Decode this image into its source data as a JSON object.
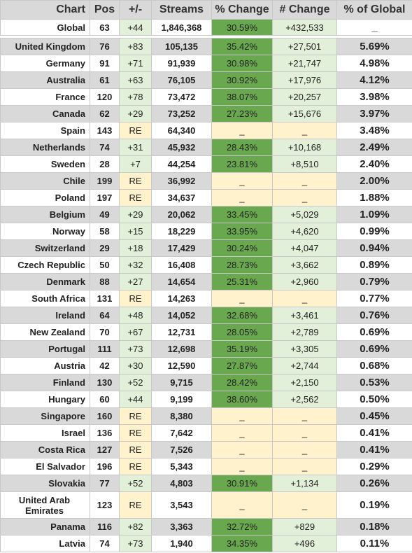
{
  "chart_data": {
    "type": "table",
    "columns": [
      "Chart",
      "Pos",
      "+/-",
      "Streams",
      "% Change",
      "# Change",
      "% of Global"
    ],
    "global": {
      "chart": "Global",
      "pos": "63",
      "delta": "+44",
      "streams": "1,846,368",
      "pct_change": "30.59%",
      "num_change": "+432,533",
      "pct_global": "_"
    },
    "rows": [
      {
        "chart": "United Kingdom",
        "pos": "76",
        "delta": "+83",
        "streams": "105,135",
        "pct_change": "35.42%",
        "num_change": "+27,501",
        "pct_global": "5.69%"
      },
      {
        "chart": "Germany",
        "pos": "91",
        "delta": "+71",
        "streams": "91,939",
        "pct_change": "30.98%",
        "num_change": "+21,747",
        "pct_global": "4.98%"
      },
      {
        "chart": "Australia",
        "pos": "61",
        "delta": "+63",
        "streams": "76,105",
        "pct_change": "30.92%",
        "num_change": "+17,976",
        "pct_global": "4.12%"
      },
      {
        "chart": "France",
        "pos": "120",
        "delta": "+78",
        "streams": "73,472",
        "pct_change": "38.07%",
        "num_change": "+20,257",
        "pct_global": "3.98%"
      },
      {
        "chart": "Canada",
        "pos": "62",
        "delta": "+29",
        "streams": "73,252",
        "pct_change": "27.23%",
        "num_change": "+15,676",
        "pct_global": "3.97%"
      },
      {
        "chart": "Spain",
        "pos": "143",
        "delta": "RE",
        "streams": "64,340",
        "pct_change": "_",
        "num_change": "_",
        "pct_global": "3.48%"
      },
      {
        "chart": "Netherlands",
        "pos": "74",
        "delta": "+31",
        "streams": "45,932",
        "pct_change": "28.43%",
        "num_change": "+10,168",
        "pct_global": "2.49%"
      },
      {
        "chart": "Sweden",
        "pos": "28",
        "delta": "+7",
        "streams": "44,254",
        "pct_change": "23.81%",
        "num_change": "+8,510",
        "pct_global": "2.40%"
      },
      {
        "chart": "Chile",
        "pos": "199",
        "delta": "RE",
        "streams": "36,992",
        "pct_change": "_",
        "num_change": "_",
        "pct_global": "2.00%"
      },
      {
        "chart": "Poland",
        "pos": "197",
        "delta": "RE",
        "streams": "34,637",
        "pct_change": "_",
        "num_change": "_",
        "pct_global": "1.88%"
      },
      {
        "chart": "Belgium",
        "pos": "49",
        "delta": "+29",
        "streams": "20,062",
        "pct_change": "33.45%",
        "num_change": "+5,029",
        "pct_global": "1.09%"
      },
      {
        "chart": "Norway",
        "pos": "58",
        "delta": "+15",
        "streams": "18,229",
        "pct_change": "33.95%",
        "num_change": "+4,620",
        "pct_global": "0.99%"
      },
      {
        "chart": "Switzerland",
        "pos": "29",
        "delta": "+18",
        "streams": "17,429",
        "pct_change": "30.24%",
        "num_change": "+4,047",
        "pct_global": "0.94%"
      },
      {
        "chart": "Czech Republic",
        "pos": "50",
        "delta": "+32",
        "streams": "16,408",
        "pct_change": "28.73%",
        "num_change": "+3,662",
        "pct_global": "0.89%"
      },
      {
        "chart": "Denmark",
        "pos": "88",
        "delta": "+27",
        "streams": "14,654",
        "pct_change": "25.31%",
        "num_change": "+2,960",
        "pct_global": "0.79%"
      },
      {
        "chart": "South Africa",
        "pos": "131",
        "delta": "RE",
        "streams": "14,263",
        "pct_change": "_",
        "num_change": "_",
        "pct_global": "0.77%"
      },
      {
        "chart": "Ireland",
        "pos": "64",
        "delta": "+48",
        "streams": "14,052",
        "pct_change": "32.68%",
        "num_change": "+3,461",
        "pct_global": "0.76%"
      },
      {
        "chart": "New Zealand",
        "pos": "70",
        "delta": "+67",
        "streams": "12,731",
        "pct_change": "28.05%",
        "num_change": "+2,789",
        "pct_global": "0.69%"
      },
      {
        "chart": "Portugal",
        "pos": "111",
        "delta": "+73",
        "streams": "12,698",
        "pct_change": "35.19%",
        "num_change": "+3,305",
        "pct_global": "0.69%"
      },
      {
        "chart": "Austria",
        "pos": "42",
        "delta": "+30",
        "streams": "12,590",
        "pct_change": "27.87%",
        "num_change": "+2,744",
        "pct_global": "0.68%"
      },
      {
        "chart": "Finland",
        "pos": "130",
        "delta": "+52",
        "streams": "9,715",
        "pct_change": "28.42%",
        "num_change": "+2,150",
        "pct_global": "0.53%"
      },
      {
        "chart": "Hungary",
        "pos": "60",
        "delta": "+44",
        "streams": "9,199",
        "pct_change": "38.60%",
        "num_change": "+2,562",
        "pct_global": "0.50%"
      },
      {
        "chart": "Singapore",
        "pos": "160",
        "delta": "RE",
        "streams": "8,380",
        "pct_change": "_",
        "num_change": "_",
        "pct_global": "0.45%"
      },
      {
        "chart": "Israel",
        "pos": "136",
        "delta": "RE",
        "streams": "7,642",
        "pct_change": "_",
        "num_change": "_",
        "pct_global": "0.41%"
      },
      {
        "chart": "Costa Rica",
        "pos": "127",
        "delta": "RE",
        "streams": "7,526",
        "pct_change": "_",
        "num_change": "_",
        "pct_global": "0.41%"
      },
      {
        "chart": "El Salvador",
        "pos": "196",
        "delta": "RE",
        "streams": "5,343",
        "pct_change": "_",
        "num_change": "_",
        "pct_global": "0.29%"
      },
      {
        "chart": "Slovakia",
        "pos": "77",
        "delta": "+52",
        "streams": "4,803",
        "pct_change": "30.91%",
        "num_change": "+1,134",
        "pct_global": "0.26%"
      },
      {
        "chart": "United Arab Emirates",
        "pos": "123",
        "delta": "RE",
        "streams": "3,543",
        "pct_change": "_",
        "num_change": "_",
        "pct_global": "0.19%"
      },
      {
        "chart": "Panama",
        "pos": "116",
        "delta": "+82",
        "streams": "3,363",
        "pct_change": "32.72%",
        "num_change": "+829",
        "pct_global": "0.18%"
      },
      {
        "chart": "Latvia",
        "pos": "74",
        "delta": "+73",
        "streams": "1,940",
        "pct_change": "34.35%",
        "num_change": "+496",
        "pct_global": "0.11%"
      }
    ]
  },
  "colors": {
    "header_bg": "#d9d9d9",
    "row_gray": "#d9d9d9",
    "row_white": "#ffffff",
    "delta_bg": "#e2f0d9",
    "pct_change_bg": "#6aa84f",
    "reentry_bg": "#fff2cc"
  }
}
